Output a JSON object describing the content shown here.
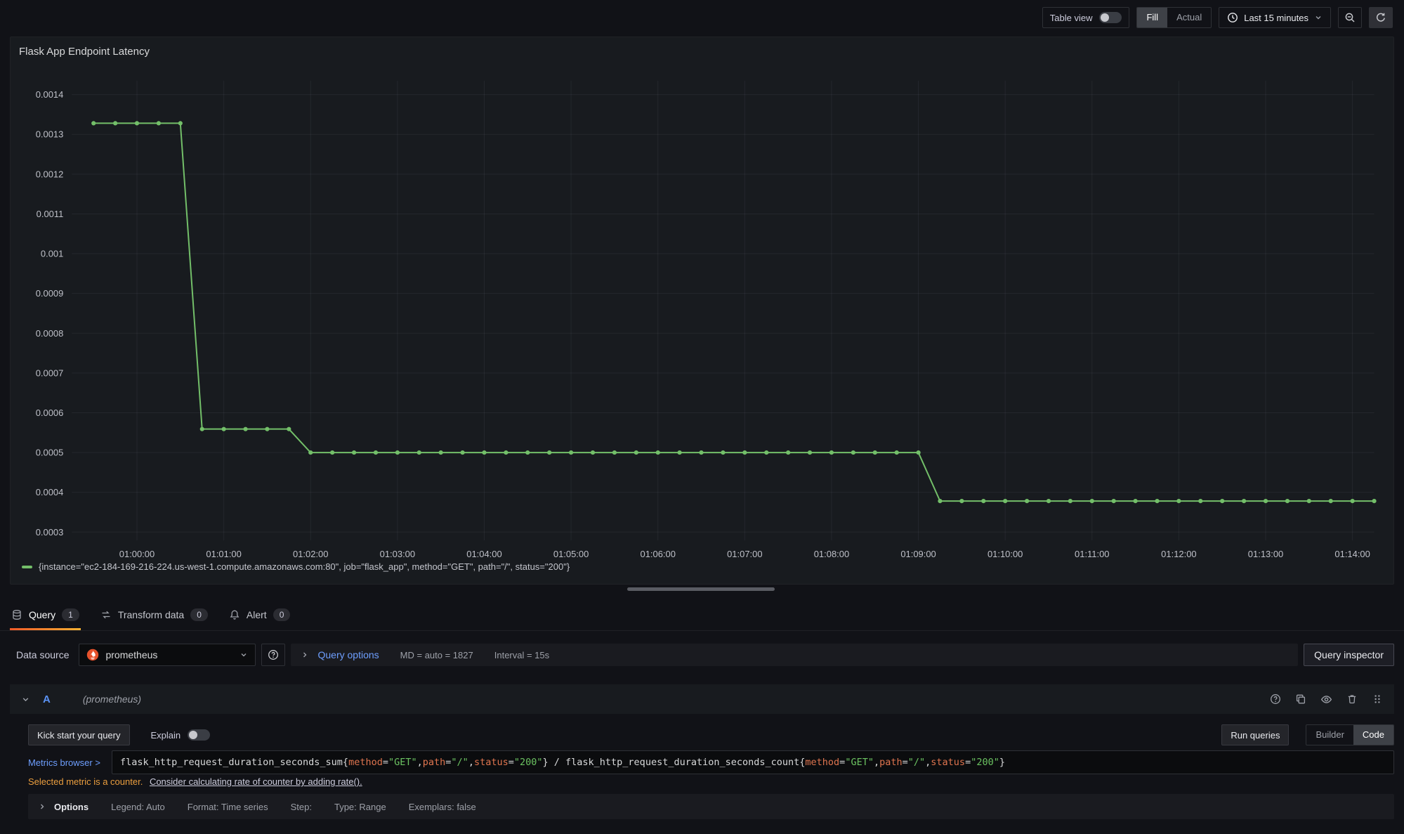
{
  "toolbar": {
    "table_view_label": "Table view",
    "fill_label": "Fill",
    "actual_label": "Actual",
    "time_range_label": "Last 15 minutes"
  },
  "panel": {
    "title": "Flask App Endpoint Latency"
  },
  "chart_data": {
    "type": "line",
    "title": "Flask App Endpoint Latency",
    "xlabel": "",
    "ylabel": "",
    "grid": true,
    "legend_position": "bottom-left",
    "x_domain_seconds": [
      -45,
      855
    ],
    "y_domain": [
      0.000279,
      0.001435
    ],
    "x_ticks": [
      {
        "t": 0,
        "label": "01:00:00"
      },
      {
        "t": 60,
        "label": "01:01:00"
      },
      {
        "t": 120,
        "label": "01:02:00"
      },
      {
        "t": 180,
        "label": "01:03:00"
      },
      {
        "t": 240,
        "label": "01:04:00"
      },
      {
        "t": 300,
        "label": "01:05:00"
      },
      {
        "t": 360,
        "label": "01:06:00"
      },
      {
        "t": 420,
        "label": "01:07:00"
      },
      {
        "t": 480,
        "label": "01:08:00"
      },
      {
        "t": 540,
        "label": "01:09:00"
      },
      {
        "t": 600,
        "label": "01:10:00"
      },
      {
        "t": 660,
        "label": "01:11:00"
      },
      {
        "t": 720,
        "label": "01:12:00"
      },
      {
        "t": 780,
        "label": "01:13:00"
      },
      {
        "t": 840,
        "label": "01:14:00"
      }
    ],
    "y_ticks": [
      {
        "v": 0.0003,
        "label": "0.0003"
      },
      {
        "v": 0.0004,
        "label": "0.0004"
      },
      {
        "v": 0.0005,
        "label": "0.0005"
      },
      {
        "v": 0.0006,
        "label": "0.0006"
      },
      {
        "v": 0.0007,
        "label": "0.0007"
      },
      {
        "v": 0.0008,
        "label": "0.0008"
      },
      {
        "v": 0.0009,
        "label": "0.0009"
      },
      {
        "v": 0.001,
        "label": "0.001"
      },
      {
        "v": 0.0011,
        "label": "0.0011"
      },
      {
        "v": 0.0012,
        "label": "0.0012"
      },
      {
        "v": 0.0013,
        "label": "0.0013"
      },
      {
        "v": 0.0014,
        "label": "0.0014"
      }
    ],
    "series": [
      {
        "name": "{instance=\"ec2-184-169-216-224.us-west-1.compute.amazonaws.com:80\", job=\"flask_app\", method=\"GET\", path=\"/\", status=\"200\"}",
        "color": "#73bf69",
        "points": [
          [
            -30,
            0.001328
          ],
          [
            -15,
            0.001328
          ],
          [
            0,
            0.001328
          ],
          [
            15,
            0.001328
          ],
          [
            30,
            0.001328
          ],
          [
            45,
            0.000559
          ],
          [
            60,
            0.000559
          ],
          [
            75,
            0.000559
          ],
          [
            90,
            0.000559
          ],
          [
            105,
            0.000559
          ],
          [
            120,
            0.0005
          ],
          [
            135,
            0.0005
          ],
          [
            150,
            0.0005
          ],
          [
            165,
            0.0005
          ],
          [
            180,
            0.0005
          ],
          [
            195,
            0.0005
          ],
          [
            210,
            0.0005
          ],
          [
            225,
            0.0005
          ],
          [
            240,
            0.0005
          ],
          [
            255,
            0.0005
          ],
          [
            270,
            0.0005
          ],
          [
            285,
            0.0005
          ],
          [
            300,
            0.0005
          ],
          [
            315,
            0.0005
          ],
          [
            330,
            0.0005
          ],
          [
            345,
            0.0005
          ],
          [
            360,
            0.0005
          ],
          [
            375,
            0.0005
          ],
          [
            390,
            0.0005
          ],
          [
            405,
            0.0005
          ],
          [
            420,
            0.0005
          ],
          [
            435,
            0.0005
          ],
          [
            450,
            0.0005
          ],
          [
            465,
            0.0005
          ],
          [
            480,
            0.0005
          ],
          [
            495,
            0.0005
          ],
          [
            510,
            0.0005
          ],
          [
            525,
            0.0005
          ],
          [
            540,
            0.0005
          ],
          [
            555,
            0.000378
          ],
          [
            570,
            0.000378
          ],
          [
            585,
            0.000378
          ],
          [
            600,
            0.000378
          ],
          [
            615,
            0.000378
          ],
          [
            630,
            0.000378
          ],
          [
            645,
            0.000378
          ],
          [
            660,
            0.000378
          ],
          [
            675,
            0.000378
          ],
          [
            690,
            0.000378
          ],
          [
            705,
            0.000378
          ],
          [
            720,
            0.000378
          ],
          [
            735,
            0.000378
          ],
          [
            750,
            0.000378
          ],
          [
            765,
            0.000378
          ],
          [
            780,
            0.000378
          ],
          [
            795,
            0.000378
          ],
          [
            810,
            0.000378
          ],
          [
            825,
            0.000378
          ],
          [
            840,
            0.000378
          ],
          [
            855,
            0.000378
          ]
        ]
      }
    ]
  },
  "tabs": [
    {
      "label": "Query",
      "badge": "1",
      "active": true
    },
    {
      "label": "Transform data",
      "badge": "0",
      "active": false
    },
    {
      "label": "Alert",
      "badge": "0",
      "active": false
    }
  ],
  "datasource_row": {
    "label": "Data source",
    "value": "prometheus",
    "options_label": "Query options",
    "md_text": "MD = auto = 1827",
    "interval_text": "Interval = 15s",
    "inspector_label": "Query inspector"
  },
  "query_row": {
    "ref_id": "A",
    "datasource_hint": "(prometheus)"
  },
  "editor": {
    "kick_start_label": "Kick start your query",
    "explain_label": "Explain",
    "run_queries_label": "Run queries",
    "builder_label": "Builder",
    "code_label": "Code",
    "metrics_browser_label": "Metrics browser >",
    "query_tokens": [
      {
        "text": "flask_http_request_duration_seconds_sum{",
        "type": "plain"
      },
      {
        "text": "method",
        "type": "label"
      },
      {
        "text": "=",
        "type": "plain"
      },
      {
        "text": "\"GET\"",
        "type": "string"
      },
      {
        "text": ",",
        "type": "plain"
      },
      {
        "text": "path",
        "type": "label"
      },
      {
        "text": "=",
        "type": "plain"
      },
      {
        "text": "\"/\"",
        "type": "string"
      },
      {
        "text": ",",
        "type": "plain"
      },
      {
        "text": "status",
        "type": "label"
      },
      {
        "text": "=",
        "type": "plain"
      },
      {
        "text": "\"200\"",
        "type": "string"
      },
      {
        "text": "} / flask_http_request_duration_seconds_count{",
        "type": "plain"
      },
      {
        "text": "method",
        "type": "label"
      },
      {
        "text": "=",
        "type": "plain"
      },
      {
        "text": "\"GET\"",
        "type": "string"
      },
      {
        "text": ",",
        "type": "plain"
      },
      {
        "text": "path",
        "type": "label"
      },
      {
        "text": "=",
        "type": "plain"
      },
      {
        "text": "\"/\"",
        "type": "string"
      },
      {
        "text": ",",
        "type": "plain"
      },
      {
        "text": "status",
        "type": "label"
      },
      {
        "text": "=",
        "type": "plain"
      },
      {
        "text": "\"200\"",
        "type": "string"
      },
      {
        "text": "}",
        "type": "plain"
      }
    ],
    "warning_text": "Selected metric is a counter.",
    "warning_link": "Consider calculating rate of counter by adding rate().",
    "options_summary": {
      "label": "Options",
      "items": [
        "Legend: Auto",
        "Format: Time series",
        "Step:",
        "Type: Range",
        "Exemplars: false"
      ]
    }
  },
  "colors": {
    "series_green": "#73bf69",
    "link_blue": "#6e9fff",
    "warning_orange": "#eb9e3e",
    "tab_accent_start": "#f05a28",
    "tab_accent_end": "#f8b133",
    "prometheus_orange": "#e6522c",
    "panel_background": "#181b1f",
    "page_background": "#111217"
  }
}
